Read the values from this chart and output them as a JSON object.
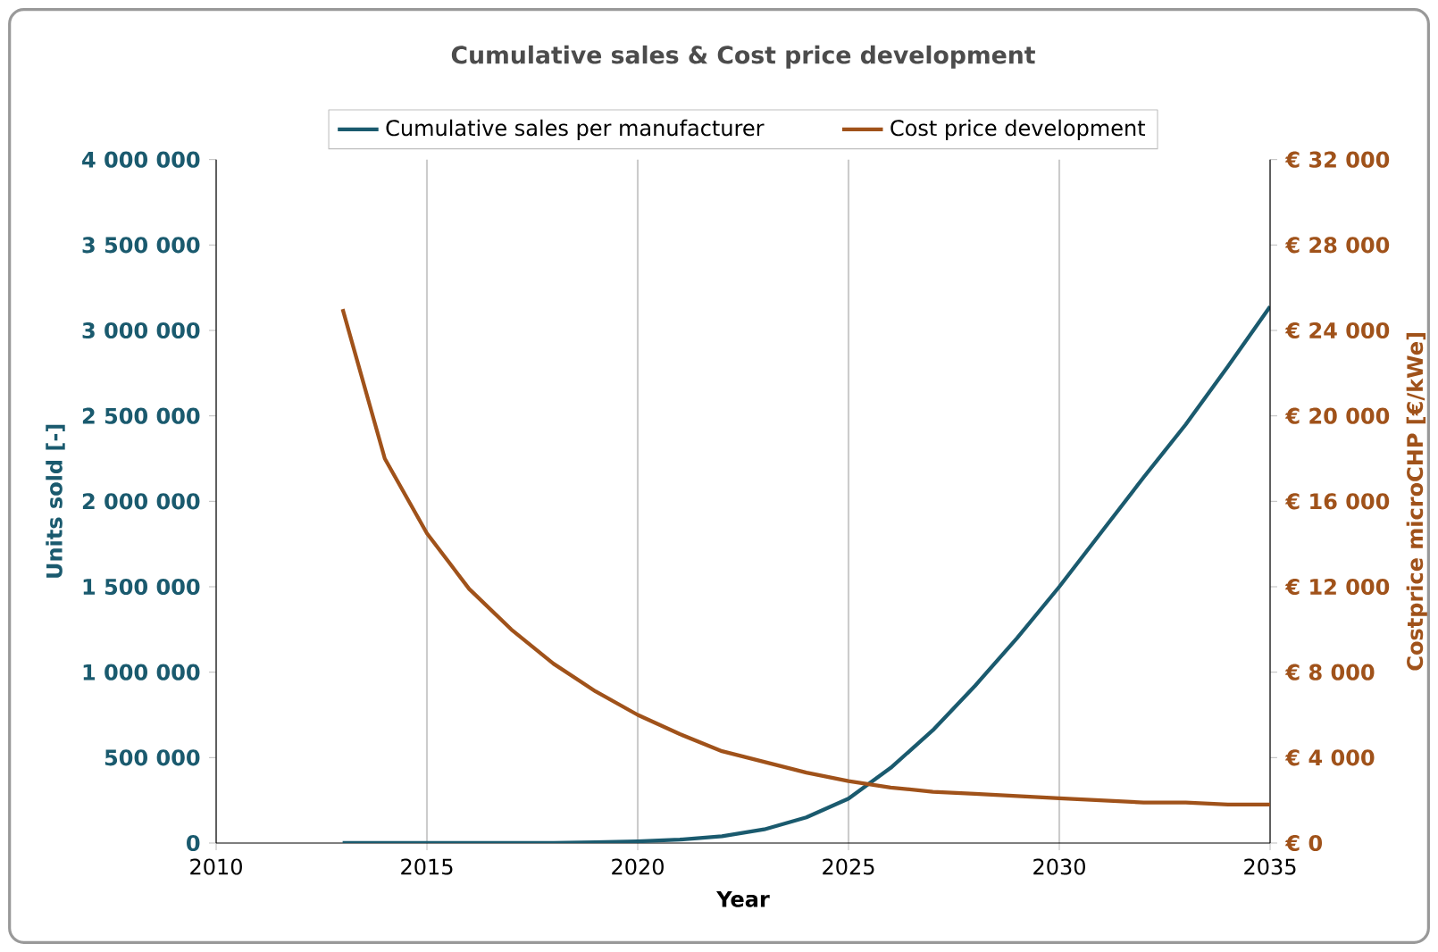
{
  "chart_data": {
    "type": "line",
    "title": "Cumulative sales & Cost price development",
    "xlabel": "Year",
    "ylabel": "Units sold [-]",
    "y2label": "Costprice microCHP  [€/kWe]",
    "x": [
      2013,
      2014,
      2015,
      2016,
      2017,
      2018,
      2019,
      2020,
      2021,
      2022,
      2023,
      2024,
      2025,
      2026,
      2027,
      2028,
      2029,
      2030,
      2031,
      2032,
      2033,
      2034,
      2035
    ],
    "series": [
      {
        "name": "Cumulative sales per manufacturer",
        "color": "#1a5a6e",
        "values": [
          0,
          0,
          0,
          0,
          0,
          0,
          5000,
          10000,
          20000,
          40000,
          80000,
          150000,
          260000,
          440000,
          660000,
          920000,
          1200000,
          1500000,
          1820000,
          2140000,
          2450000,
          2790000,
          3140000
        ]
      },
      {
        "name": "Cost price development",
        "color": "#a0521a",
        "axis": "y2",
        "values": [
          25000,
          18000,
          14500,
          11900,
          10000,
          8400,
          7100,
          6000,
          5100,
          4300,
          3800,
          3300,
          2900,
          2600,
          2400,
          2300,
          2200,
          2100,
          2000,
          1900,
          1900,
          1800,
          1800
        ]
      }
    ],
    "xlim": [
      2010,
      2035
    ],
    "xticks": [
      2010,
      2015,
      2020,
      2025,
      2030,
      2035
    ],
    "ylim": [
      0,
      4000000
    ],
    "yticks": [
      {
        "value": 0,
        "label": "0"
      },
      {
        "value": 500000,
        "label": "500 000"
      },
      {
        "value": 1000000,
        "label": "1 000 000"
      },
      {
        "value": 1500000,
        "label": "1 500 000"
      },
      {
        "value": 2000000,
        "label": "2 000 000"
      },
      {
        "value": 2500000,
        "label": "2 500 000"
      },
      {
        "value": 3000000,
        "label": "3 000 000"
      },
      {
        "value": 3500000,
        "label": "3 500 000"
      },
      {
        "value": 4000000,
        "label": "4 000 000"
      }
    ],
    "y2lim": [
      0,
      32000
    ],
    "y2ticks": [
      {
        "value": 0,
        "label": "€ 0"
      },
      {
        "value": 4000,
        "label": "€ 4 000"
      },
      {
        "value": 8000,
        "label": "€ 8 000"
      },
      {
        "value": 12000,
        "label": "€ 12 000"
      },
      {
        "value": 16000,
        "label": "€ 16 000"
      },
      {
        "value": 20000,
        "label": "€ 20 000"
      },
      {
        "value": 24000,
        "label": "€ 24 000"
      },
      {
        "value": 28000,
        "label": "€ 28 000"
      },
      {
        "value": 32000,
        "label": "€ 32 000"
      }
    ],
    "grid": "x",
    "legend": "top",
    "marker": "none",
    "line_style": "solid"
  }
}
